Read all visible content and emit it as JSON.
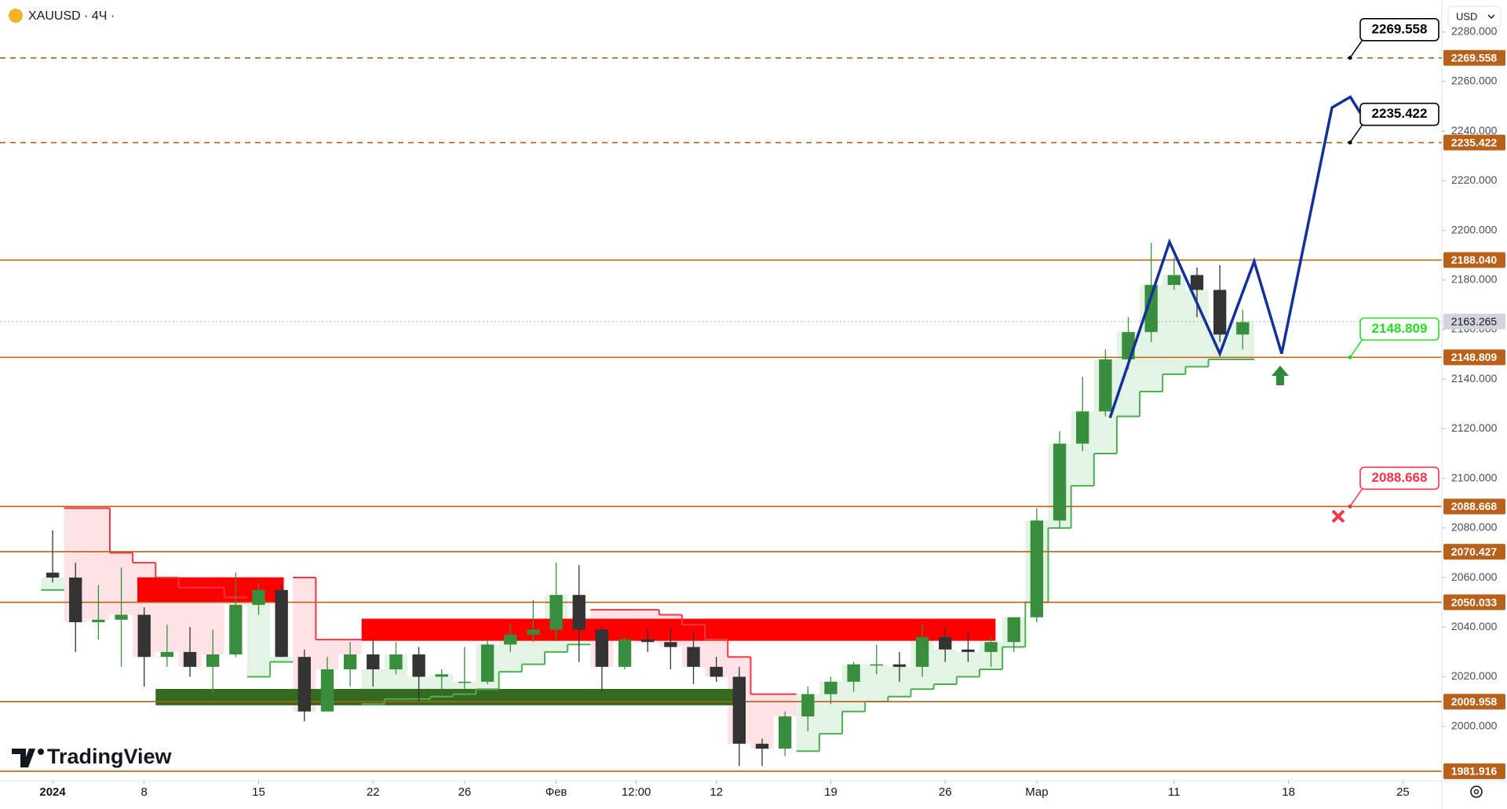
{
  "chart_data": {
    "type": "candlestick",
    "title": "XAUUSD · 4Ч ·",
    "currency": "USD",
    "watermark": "TradingView",
    "xlim": [
      -2.3,
      60.7
    ],
    "ylim": [
      1978.7,
      2292.9
    ],
    "xticks": [
      {
        "value": 0,
        "label": "2024"
      },
      {
        "value": 4,
        "label": "8"
      },
      {
        "value": 9,
        "label": "15"
      },
      {
        "value": 14,
        "label": "22"
      },
      {
        "value": 18,
        "label": "26"
      },
      {
        "value": 22,
        "label": "Фев"
      },
      {
        "value": 25.5,
        "label": "12:00"
      },
      {
        "value": 29,
        "label": "12"
      },
      {
        "value": 34,
        "label": "19"
      },
      {
        "value": 39,
        "label": "26"
      },
      {
        "value": 43,
        "label": "Мар"
      },
      {
        "value": 49,
        "label": "11"
      },
      {
        "value": 54,
        "label": "18"
      },
      {
        "value": 59,
        "label": "25"
      }
    ],
    "yticks": [
      {
        "value": 2000,
        "label": "2000.000"
      },
      {
        "value": 2020,
        "label": "2020.000"
      },
      {
        "value": 2040,
        "label": "2040.000"
      },
      {
        "value": 2060,
        "label": "2060.000"
      },
      {
        "value": 2080,
        "label": "2080.000"
      },
      {
        "value": 2100,
        "label": "2100.000"
      },
      {
        "value": 2120,
        "label": "2120.000"
      },
      {
        "value": 2140,
        "label": "2140.000"
      },
      {
        "value": 2160,
        "label": "2160.000"
      },
      {
        "value": 2180,
        "label": "2180.000"
      },
      {
        "value": 2200,
        "label": "2200.000"
      },
      {
        "value": 2220,
        "label": "2220.000"
      },
      {
        "value": 2240,
        "label": "2240.000"
      },
      {
        "value": 2260,
        "label": "2260.000"
      },
      {
        "value": 2280,
        "label": "2280.000"
      }
    ],
    "up_color": "#388e3c",
    "down_color": "#333333",
    "x": [
      0,
      1,
      2,
      3,
      4,
      5,
      6,
      7,
      8,
      9,
      10,
      11,
      12,
      13,
      14,
      15,
      16,
      17,
      18,
      19,
      20,
      21,
      22,
      23,
      24,
      25,
      26,
      27,
      28,
      29,
      30,
      31,
      32,
      33,
      34,
      35,
      36,
      37,
      38,
      39,
      40,
      41,
      42,
      43,
      44,
      45,
      46,
      47,
      48,
      49,
      50,
      51,
      52
    ],
    "open": [
      2062,
      2060,
      2042,
      2043,
      2045,
      2028,
      2030,
      2024,
      2029,
      2049,
      2055,
      2028,
      2006,
      2023,
      2029,
      2023,
      2029,
      2020,
      2018,
      2018,
      2033,
      2037,
      2039,
      2053,
      2039,
      2024,
      2035,
      2034,
      2032,
      2024,
      2020,
      1993,
      1991,
      2004,
      2013,
      2018,
      2025,
      2025,
      2024,
      2036,
      2031,
      2030,
      2034,
      2044,
      2083,
      2114,
      2127,
      2148,
      2159,
      2178,
      2182,
      2176,
      2158
    ],
    "high": [
      2079,
      2066,
      2057,
      2064,
      2048,
      2041,
      2040,
      2039,
      2062,
      2058,
      2057,
      2031,
      2028,
      2034,
      2035,
      2034,
      2032,
      2023,
      2032,
      2035,
      2041,
      2051,
      2066,
      2065,
      2040,
      2036,
      2039,
      2040,
      2038,
      2028,
      2024,
      1995,
      2006,
      2016,
      2020,
      2026,
      2033,
      2030,
      2041,
      2040,
      2038,
      2036,
      2044,
      2088,
      2119,
      2141,
      2152,
      2165,
      2195,
      2189,
      2185,
      2186,
      2168
    ],
    "low": [
      2058,
      2030,
      2035,
      2024,
      2016,
      2024,
      2020,
      2013,
      2028,
      2045,
      2028,
      2002,
      2006,
      2016,
      2016,
      2021,
      2010,
      2015,
      2015,
      2017,
      2030,
      2034,
      2035,
      2026,
      2014,
      2023,
      2030,
      2023,
      2017,
      2018,
      1984,
      1984,
      1988,
      1998,
      2009,
      2014,
      2021,
      2018,
      2020,
      2026,
      2026,
      2024,
      2030,
      2042,
      2080,
      2111,
      2125,
      2144,
      2155,
      2176,
      2165,
      2155,
      2152
    ],
    "close": [
      2060,
      2042,
      2043,
      2045,
      2028,
      2030,
      2024,
      2029,
      2049,
      2055,
      2028,
      2006,
      2023,
      2029,
      2023,
      2029,
      2020,
      2021,
      2018,
      2033,
      2037,
      2039,
      2053,
      2039,
      2024,
      2035,
      2034,
      2032,
      2024,
      2020,
      1993,
      1991,
      2004,
      2013,
      2018,
      2025,
      2025,
      2024,
      2036,
      2031,
      2030,
      2034,
      2044,
      2083,
      2114,
      2127,
      2148,
      2159,
      2178,
      2182,
      2176,
      2158,
      2163
    ],
    "trail": {
      "values": [
        2055,
        2088,
        2088,
        2070,
        2066,
        2060,
        2056,
        2056,
        2052,
        2020,
        2026,
        2060,
        2035,
        2035,
        2009,
        2011,
        2011,
        2012,
        2013,
        2015,
        2022,
        2025,
        2030,
        2033,
        2047,
        2047,
        2047,
        2045,
        2041,
        2035,
        2028,
        2013,
        2013,
        1990,
        1997,
        2006,
        2010,
        2012,
        2015,
        2017,
        2020,
        2023,
        2032,
        2050,
        2080,
        2097,
        2110,
        2125,
        2135,
        2142,
        2145,
        2148,
        2148
      ],
      "direction": [
        "up",
        "down",
        "down",
        "down",
        "down",
        "down",
        "down",
        "down",
        "down",
        "up",
        "up",
        "down",
        "down",
        "down",
        "up",
        "up",
        "up",
        "up",
        "up",
        "up",
        "up",
        "up",
        "up",
        "up",
        "down",
        "down",
        "down",
        "down",
        "down",
        "down",
        "down",
        "down",
        "down",
        "up",
        "up",
        "up",
        "up",
        "up",
        "up",
        "up",
        "up",
        "up",
        "up",
        "up",
        "up",
        "up",
        "up",
        "up",
        "up",
        "up",
        "up",
        "up",
        "up"
      ],
      "colors": {
        "up": "#4caf50",
        "down": "#f23645"
      },
      "fills": {
        "up": "#e3f3e4",
        "down": "#fde3e6"
      }
    },
    "zones": [
      {
        "x0": 3.7,
        "x1": 10.1,
        "y0": 2050,
        "y1": 2060.1,
        "color": "#ff0000"
      },
      {
        "x0": 13.5,
        "x1": 41.2,
        "y0": 2034.5,
        "y1": 2043.4,
        "color": "#ff0000"
      },
      {
        "x0": 4.5,
        "x1": 29.9,
        "y0": 2008.5,
        "y1": 2015.1,
        "color": "#336a1e"
      }
    ],
    "levels": [
      {
        "value": 2269.558,
        "style": "dashed"
      },
      {
        "value": 2235.422,
        "style": "dashed"
      },
      {
        "value": {
          "value": 2188.04,
          "label": "2188.040"
        },
        "style": "solid"
      },
      {
        "value": 2148.809,
        "style": "solid"
      },
      {
        "value": 2088.668,
        "style": "solid"
      },
      {
        "value": 2070.427,
        "style": "solid"
      },
      {
        "value": 2050.033,
        "style": "solid"
      },
      {
        "value": 2009.958,
        "style": "solid"
      },
      {
        "value": 1981.916,
        "style": "solid"
      }
    ],
    "level_color": "#b8611a",
    "last_price": 2163.265,
    "callouts": [
      {
        "value": 2269.558,
        "color": "#000000"
      },
      {
        "value": 2235.422,
        "color": "#000000"
      },
      {
        "value": 2148.809,
        "color": "#22dd22"
      },
      {
        "value": 2088.668,
        "color": "#f23645"
      }
    ],
    "projection": {
      "color": "#14309a",
      "x": [
        46.2,
        48.8,
        51.0,
        52.5,
        53.7,
        55.9,
        56.7,
        57.2
      ],
      "y": [
        2124.4,
        2195.3,
        2150.3,
        2187.5,
        2150.3,
        2249.5,
        2253.8,
        2246.4
      ]
    }
  }
}
